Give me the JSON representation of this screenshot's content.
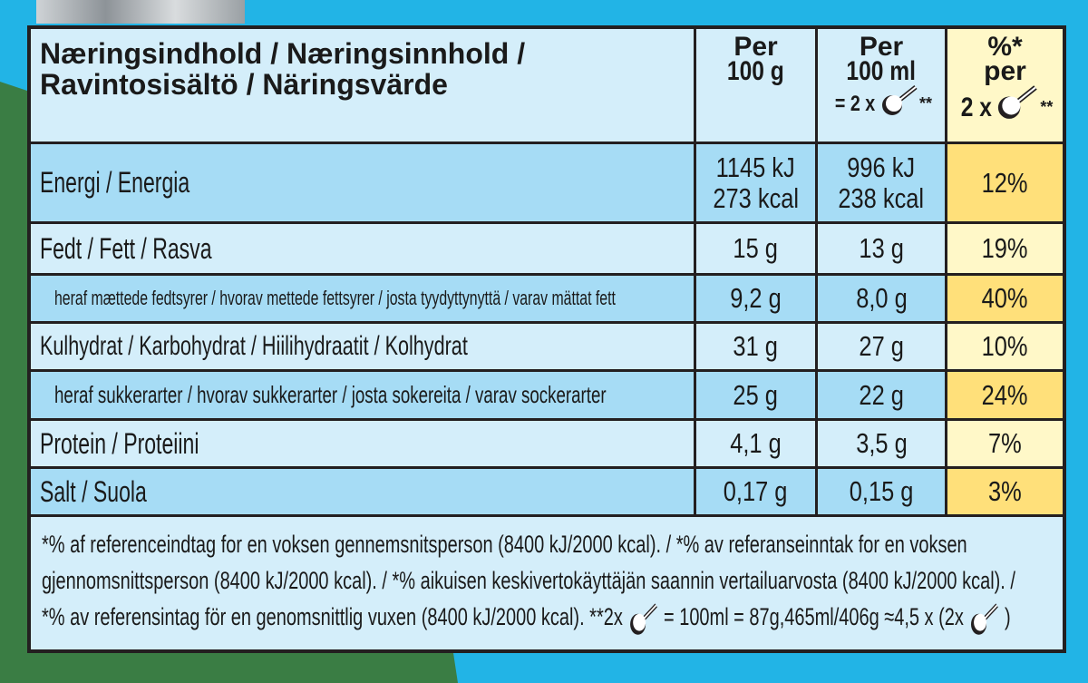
{
  "header": {
    "title_line1": "Næringsindhold / Næringsinnhold /",
    "title_line2": "Ravintosisältö / Näringsvärde",
    "col_100g": [
      "Per",
      "100 g"
    ],
    "col_100ml": [
      "Per",
      "100 ml",
      "= 2 x",
      "**"
    ],
    "col_pct": [
      "%*",
      "per",
      "2 x",
      "**"
    ]
  },
  "rows": [
    {
      "label": "Energi / Energia",
      "per100g": [
        "1145 kJ",
        "273 kcal"
      ],
      "per100ml": [
        "996 kJ",
        "238 kcal"
      ],
      "pct": "12%"
    },
    {
      "label": "Fedt / Fett / Rasva",
      "per100g": [
        "15 g"
      ],
      "per100ml": [
        "13 g"
      ],
      "pct": "19%"
    },
    {
      "label": "heraf mættede fedtsyrer / hvorav mettede fettsyrer / josta tyydyttynyttä / varav mättat fett",
      "per100g": [
        "9,2 g"
      ],
      "per100ml": [
        "8,0 g"
      ],
      "pct": "40%"
    },
    {
      "label": "Kulhydrat / Karbohydrat / Hiilihydraatit / Kolhydrat",
      "per100g": [
        "31 g"
      ],
      "per100ml": [
        "27 g"
      ],
      "pct": "10%"
    },
    {
      "label": "heraf sukkerarter / hvorav sukkerarter / josta sokereita / varav sockerarter",
      "per100g": [
        "25 g"
      ],
      "per100ml": [
        "22 g"
      ],
      "pct": "24%"
    },
    {
      "label": "Protein / Proteiini",
      "per100g": [
        "4,1 g"
      ],
      "per100ml": [
        "3,5 g"
      ],
      "pct": "7%"
    },
    {
      "label": "Salt / Suola",
      "per100g": [
        "0,17 g"
      ],
      "per100ml": [
        "0,15 g"
      ],
      "pct": "3%"
    }
  ],
  "footnote": {
    "line1": "*% af referenceindtag for en voksen gennemsnitsperson (8400 kJ/2000 kcal). / *% av referanseinntak for en voksen",
    "line2": "gjennomsnittsperson (8400 kJ/2000 kcal). / *% aikuisen keskivertokäyttäjän saannin vertailuarvosta (8400 kJ/2000 kcal). /",
    "line3a": "*% av referensintag för en genomsnittlig vuxen (8400 kJ/2000 kcal).  **2x",
    "line3b": "= 100ml = 87g,465ml/406g ≈4,5 x (2x",
    "line3c": ")"
  },
  "icons": {
    "serving": "scoop-icon"
  },
  "colors": {
    "background": "#22b4e6",
    "green": "#3a7d44",
    "row_dark": "#a6dcf5",
    "row_light": "#d4eefa",
    "pct_dark": "#ffe07a",
    "pct_light": "#fff8c8"
  }
}
